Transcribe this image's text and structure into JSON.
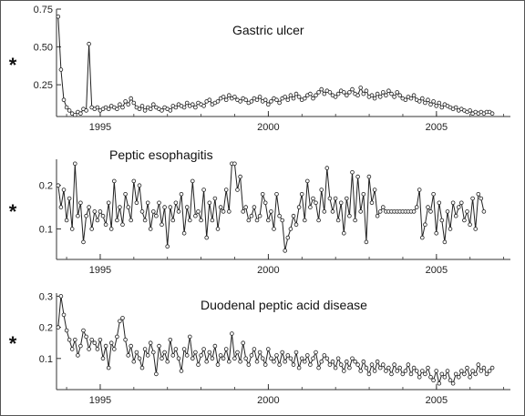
{
  "chart_data": [
    {
      "type": "line",
      "title": "Gastric ulcer",
      "ylabel": "*",
      "x_range": [
        1993.7,
        2007.2
      ],
      "ylim": [
        0.04,
        0.75
      ],
      "x_ticks": [
        1995,
        2000,
        2005
      ],
      "y_ticks": [
        0.25,
        0.5,
        0.75
      ],
      "y_tick_labels": [
        "0.25",
        "0.50",
        "0.75"
      ],
      "x_start": 1993.75,
      "x_step": 0.0833,
      "values": [
        0.7,
        0.35,
        0.15,
        0.1,
        0.08,
        0.06,
        0.05,
        0.07,
        0.06,
        0.09,
        0.08,
        0.52,
        0.1,
        0.09,
        0.1,
        0.08,
        0.09,
        0.1,
        0.09,
        0.11,
        0.1,
        0.09,
        0.12,
        0.1,
        0.14,
        0.12,
        0.16,
        0.13,
        0.1,
        0.09,
        0.11,
        0.08,
        0.1,
        0.09,
        0.12,
        0.1,
        0.09,
        0.08,
        0.1,
        0.09,
        0.08,
        0.11,
        0.1,
        0.12,
        0.11,
        0.1,
        0.13,
        0.11,
        0.12,
        0.1,
        0.13,
        0.12,
        0.11,
        0.14,
        0.15,
        0.12,
        0.13,
        0.14,
        0.16,
        0.17,
        0.15,
        0.18,
        0.16,
        0.17,
        0.15,
        0.14,
        0.16,
        0.15,
        0.13,
        0.14,
        0.16,
        0.15,
        0.17,
        0.14,
        0.15,
        0.12,
        0.14,
        0.16,
        0.15,
        0.13,
        0.16,
        0.17,
        0.15,
        0.18,
        0.16,
        0.19,
        0.17,
        0.15,
        0.16,
        0.18,
        0.19,
        0.16,
        0.18,
        0.2,
        0.22,
        0.19,
        0.21,
        0.2,
        0.18,
        0.17,
        0.19,
        0.21,
        0.2,
        0.18,
        0.2,
        0.22,
        0.19,
        0.18,
        0.23,
        0.19,
        0.21,
        0.17,
        0.18,
        0.16,
        0.19,
        0.17,
        0.2,
        0.18,
        0.21,
        0.19,
        0.17,
        0.2,
        0.18,
        0.16,
        0.15,
        0.17,
        0.16,
        0.18,
        0.15,
        0.14,
        0.16,
        0.13,
        0.15,
        0.12,
        0.14,
        0.11,
        0.13,
        0.1,
        0.12,
        0.11,
        0.1,
        0.09,
        0.1,
        0.08,
        0.09,
        0.08,
        0.07,
        0.08,
        0.06,
        0.07,
        0.06,
        0.07,
        0.06,
        0.07,
        0.07,
        0.06
      ]
    },
    {
      "type": "line",
      "title": "Peptic esophagitis",
      "ylabel": "*",
      "x_range": [
        1993.7,
        2007.2
      ],
      "ylim": [
        0.03,
        0.26
      ],
      "x_ticks": [
        1995,
        2000,
        2005
      ],
      "y_ticks": [
        0.1,
        0.2
      ],
      "y_tick_labels": [
        "0.1",
        "0.2"
      ],
      "x_start": 1993.75,
      "x_step": 0.0833,
      "values": [
        0.2,
        0.15,
        0.19,
        0.12,
        0.17,
        0.1,
        0.25,
        0.13,
        0.16,
        0.07,
        0.13,
        0.15,
        0.1,
        0.14,
        0.12,
        0.14,
        0.13,
        0.11,
        0.16,
        0.1,
        0.21,
        0.12,
        0.15,
        0.11,
        0.18,
        0.15,
        0.12,
        0.21,
        0.16,
        0.2,
        0.14,
        0.12,
        0.16,
        0.1,
        0.14,
        0.13,
        0.16,
        0.11,
        0.15,
        0.06,
        0.15,
        0.12,
        0.16,
        0.14,
        0.18,
        0.09,
        0.15,
        0.12,
        0.21,
        0.13,
        0.14,
        0.12,
        0.19,
        0.08,
        0.16,
        0.12,
        0.17,
        0.1,
        0.15,
        0.14,
        0.19,
        0.14,
        0.25,
        0.25,
        0.19,
        0.22,
        0.14,
        0.15,
        0.12,
        0.13,
        0.15,
        0.12,
        0.13,
        0.18,
        0.16,
        0.12,
        0.14,
        0.1,
        0.18,
        0.13,
        0.12,
        0.05,
        0.08,
        0.1,
        0.13,
        0.11,
        0.15,
        0.18,
        0.12,
        0.21,
        0.15,
        0.17,
        0.16,
        0.12,
        0.19,
        0.14,
        0.24,
        0.17,
        0.14,
        0.17,
        0.12,
        0.16,
        0.09,
        0.17,
        0.13,
        0.23,
        0.12,
        0.22,
        0.14,
        0.18,
        0.07,
        0.22,
        0.16,
        0.19,
        0.13,
        0.14,
        0.15,
        0.14,
        0.14,
        0.14,
        0.14,
        0.14,
        0.14,
        0.14,
        0.14,
        0.14,
        0.14,
        0.14,
        0.15,
        0.19,
        0.08,
        0.11,
        0.15,
        0.14,
        0.18,
        0.09,
        0.16,
        0.12,
        0.07,
        0.14,
        0.1,
        0.16,
        0.13,
        0.15,
        0.16,
        0.12,
        0.14,
        0.11,
        0.17,
        0.1,
        0.18,
        0.17,
        0.14
      ]
    },
    {
      "type": "line",
      "title": "Duodenal peptic acid disease",
      "ylabel": "*",
      "x_range": [
        1993.7,
        2007.2
      ],
      "ylim": [
        0.0,
        0.31
      ],
      "x_ticks": [
        1995,
        2000,
        2005
      ],
      "y_ticks": [
        0.1,
        0.2,
        0.3
      ],
      "y_tick_labels": [
        "0.1",
        "0.2",
        "0.3"
      ],
      "x_start": 1993.75,
      "x_step": 0.0833,
      "values": [
        0.2,
        0.3,
        0.24,
        0.19,
        0.16,
        0.13,
        0.16,
        0.11,
        0.14,
        0.19,
        0.17,
        0.13,
        0.16,
        0.15,
        0.13,
        0.16,
        0.1,
        0.14,
        0.07,
        0.15,
        0.13,
        0.17,
        0.22,
        0.23,
        0.16,
        0.11,
        0.14,
        0.09,
        0.12,
        0.1,
        0.07,
        0.13,
        0.11,
        0.15,
        0.12,
        0.05,
        0.14,
        0.1,
        0.12,
        0.09,
        0.16,
        0.11,
        0.13,
        0.1,
        0.06,
        0.13,
        0.11,
        0.17,
        0.1,
        0.12,
        0.08,
        0.11,
        0.13,
        0.09,
        0.12,
        0.1,
        0.14,
        0.08,
        0.11,
        0.1,
        0.13,
        0.09,
        0.18,
        0.1,
        0.12,
        0.09,
        0.15,
        0.1,
        0.08,
        0.11,
        0.13,
        0.09,
        0.12,
        0.1,
        0.08,
        0.13,
        0.1,
        0.09,
        0.11,
        0.08,
        0.12,
        0.09,
        0.11,
        0.1,
        0.08,
        0.12,
        0.07,
        0.1,
        0.09,
        0.11,
        0.08,
        0.1,
        0.12,
        0.07,
        0.09,
        0.11,
        0.1,
        0.08,
        0.09,
        0.07,
        0.1,
        0.08,
        0.06,
        0.09,
        0.07,
        0.1,
        0.09,
        0.08,
        0.06,
        0.09,
        0.07,
        0.05,
        0.08,
        0.06,
        0.09,
        0.07,
        0.08,
        0.06,
        0.07,
        0.05,
        0.08,
        0.06,
        0.07,
        0.05,
        0.06,
        0.08,
        0.05,
        0.07,
        0.06,
        0.04,
        0.06,
        0.05,
        0.07,
        0.04,
        0.03,
        0.06,
        0.02,
        0.05,
        0.04,
        0.06,
        0.03,
        0.02,
        0.05,
        0.04,
        0.06,
        0.05,
        0.07,
        0.04,
        0.06,
        0.05,
        0.08,
        0.06,
        0.07,
        0.05,
        0.06,
        0.07
      ]
    }
  ]
}
